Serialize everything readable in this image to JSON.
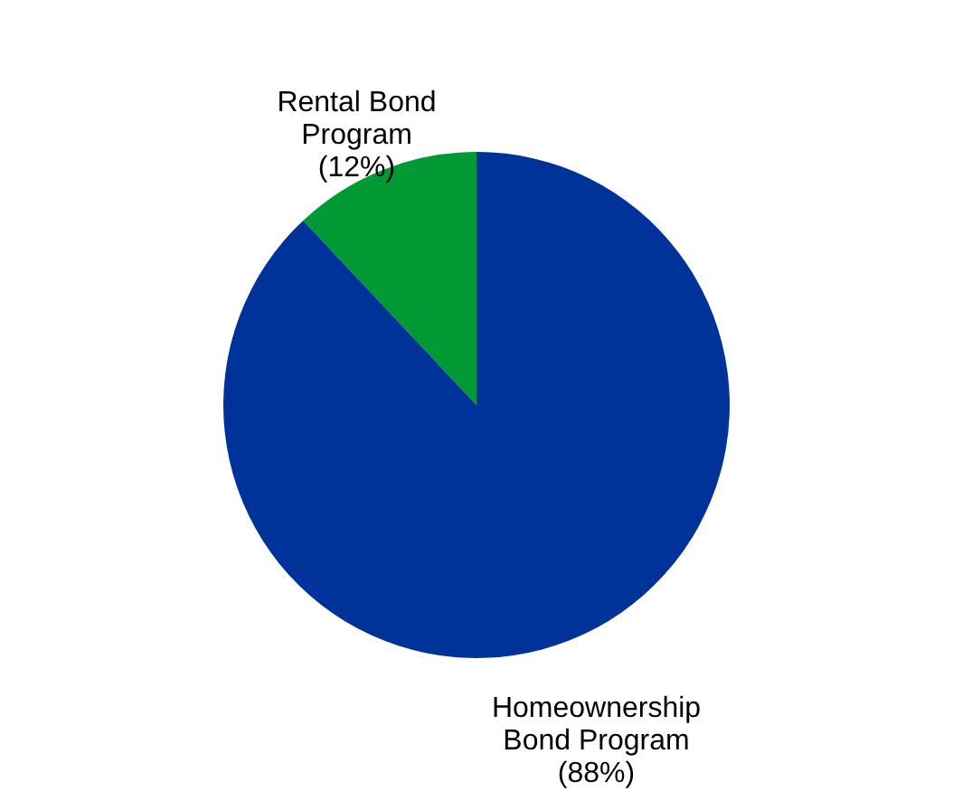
{
  "chart_data": {
    "type": "pie",
    "categories": [
      "Rental Bond Program",
      "Homeownership Bond Program"
    ],
    "values": [
      12,
      88
    ],
    "colors": [
      "#009933",
      "#003399"
    ],
    "value_labels": [
      "(12%)",
      "(88%)"
    ],
    "legend": false
  }
}
